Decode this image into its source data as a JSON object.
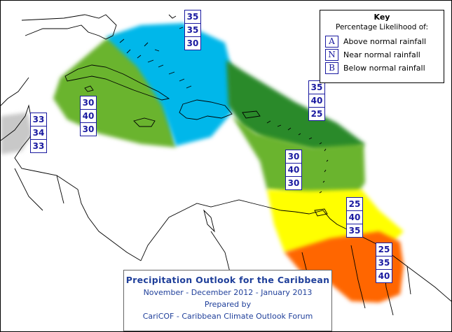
{
  "title": {
    "main": "Precipitation Outlook for the Caribbean",
    "period": "November - December 2012 - January 2013",
    "prepared_by": "Prepared by",
    "organization": "CariCOF - Caribbean Climate Outlook Forum"
  },
  "key": {
    "title": "Key",
    "subtitle": "Percentage Likelihood of:",
    "entries": [
      {
        "letter": "A",
        "label": "Above normal rainfall"
      },
      {
        "letter": "N",
        "label": "Near normal rainfall"
      },
      {
        "letter": "B",
        "label": "Below normal rainfall"
      }
    ]
  },
  "colors": {
    "above_strong": "#00b7ea",
    "near_normal": "#6ab42e",
    "below_normal_dark": "#2a8a2a",
    "below_yellow": "#ffff00",
    "below_orange": "#ff6600",
    "climatology_grey": "#c8c8c8",
    "text_blue": "#1a1aa0"
  },
  "regions": [
    {
      "id": "belize-honduras",
      "above": "33",
      "near": "34",
      "below": "33"
    },
    {
      "id": "cuba-jamaica",
      "above": "30",
      "near": "40",
      "below": "30"
    },
    {
      "id": "bahamas-hispaniola",
      "above": "35",
      "near": "35",
      "below": "30"
    },
    {
      "id": "northern-leewards",
      "above": "35",
      "near": "40",
      "below": "25"
    },
    {
      "id": "windwards",
      "above": "30",
      "near": "40",
      "below": "30"
    },
    {
      "id": "trinidad",
      "above": "25",
      "near": "40",
      "below": "35"
    },
    {
      "id": "guianas",
      "above": "25",
      "near": "35",
      "below": "40"
    }
  ]
}
